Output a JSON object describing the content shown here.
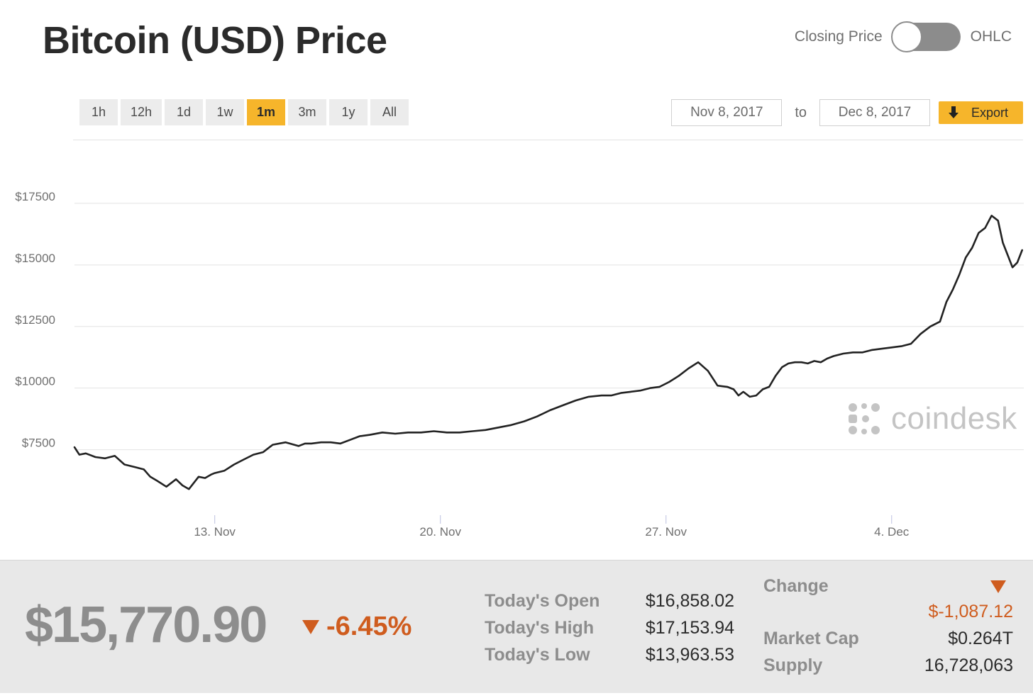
{
  "header": {
    "title": "Bitcoin (USD) Price",
    "toggle_left_label": "Closing Price",
    "toggle_right_label": "OHLC"
  },
  "range_buttons": [
    {
      "label": "1h",
      "active": false
    },
    {
      "label": "12h",
      "active": false
    },
    {
      "label": "1d",
      "active": false
    },
    {
      "label": "1w",
      "active": false
    },
    {
      "label": "1m",
      "active": true
    },
    {
      "label": "3m",
      "active": false
    },
    {
      "label": "1y",
      "active": false
    },
    {
      "label": "All",
      "active": false
    }
  ],
  "date_range": {
    "from": "Nov 8, 2017",
    "to_label": "to",
    "to": "Dec 8, 2017",
    "export_label": "Export"
  },
  "logo": {
    "text": "coindesk"
  },
  "colors": {
    "accent": "#f6b52b",
    "line": "#222222",
    "negative": "#cf5c1e",
    "grid": "#e3e3e3"
  },
  "chart_data": {
    "type": "line",
    "xlabel": "",
    "ylabel": "",
    "x_ticks": [
      {
        "label": "13. Nov",
        "x": 13
      },
      {
        "label": "20. Nov",
        "x": 20
      },
      {
        "label": "27. Nov",
        "x": 27
      },
      {
        "label": "4. Dec",
        "x": 34
      }
    ],
    "y_ticks": [
      {
        "label": "$7500",
        "value": 7500
      },
      {
        "label": "$10000",
        "value": 10000
      },
      {
        "label": "$12500",
        "value": 12500
      },
      {
        "label": "$15000",
        "value": 15000
      },
      {
        "label": "$17500",
        "value": 17500
      }
    ],
    "ylim": [
      4900,
      20000
    ],
    "xlim": [
      8.65,
      38.1
    ],
    "grid": true,
    "series": [
      {
        "x": [
          8.65,
          8.8,
          9.0,
          9.3,
          9.6,
          9.9,
          10.2,
          10.5,
          10.8,
          11.0,
          11.2,
          11.5,
          11.8,
          12.0,
          12.2,
          12.5,
          12.7,
          12.9,
          13.0,
          13.3,
          13.6,
          13.9,
          14.2,
          14.5,
          14.8,
          15.2,
          15.6,
          15.8,
          16.0,
          16.3,
          16.6,
          16.9,
          17.2,
          17.5,
          17.8,
          18.2,
          18.6,
          19.0,
          19.4,
          19.8,
          20.2,
          20.6,
          21.0,
          21.4,
          21.8,
          22.2,
          22.6,
          23.0,
          23.4,
          23.8,
          24.2,
          24.6,
          25.0,
          25.3,
          25.6,
          25.9,
          26.2,
          26.5,
          26.8,
          27.1,
          27.4,
          27.7,
          28.0,
          28.3,
          28.6,
          28.9,
          29.1,
          29.25,
          29.4,
          29.6,
          29.8,
          30.0,
          30.2,
          30.4,
          30.6,
          30.8,
          31.0,
          31.2,
          31.4,
          31.6,
          31.8,
          32.0,
          32.2,
          32.5,
          32.8,
          33.1,
          33.4,
          33.7,
          34.0,
          34.3,
          34.6,
          34.9,
          35.2,
          35.5,
          35.7,
          35.9,
          36.1,
          36.3,
          36.5,
          36.7,
          36.9,
          37.1,
          37.3,
          37.45,
          37.6,
          37.75,
          37.9,
          38.05
        ],
        "values": [
          7600,
          7300,
          7350,
          7200,
          7150,
          7250,
          6900,
          6800,
          6700,
          6400,
          6250,
          6000,
          6300,
          6050,
          5900,
          6400,
          6350,
          6500,
          6550,
          6650,
          6900,
          7100,
          7300,
          7400,
          7700,
          7800,
          7650,
          7750,
          7750,
          7800,
          7800,
          7750,
          7900,
          8050,
          8100,
          8200,
          8150,
          8200,
          8200,
          8250,
          8200,
          8200,
          8250,
          8300,
          8400,
          8500,
          8650,
          8850,
          9100,
          9300,
          9500,
          9650,
          9700,
          9700,
          9800,
          9850,
          9900,
          10000,
          10050,
          10250,
          10500,
          10800,
          11050,
          10700,
          10100,
          10050,
          9950,
          9700,
          9850,
          9650,
          9700,
          9950,
          10050,
          10500,
          10850,
          11000,
          11050,
          11050,
          11000,
          11100,
          11050,
          11200,
          11300,
          11400,
          11450,
          11450,
          11550,
          11600,
          11650,
          11700,
          11800,
          12200,
          12500,
          12700,
          13500,
          14000,
          14600,
          15300,
          15700,
          16300,
          16500,
          17000,
          16800,
          15900,
          15400,
          14900,
          15100,
          15600
        ]
      }
    ]
  },
  "stats": {
    "current_price": "$15,770.90",
    "pct_change": "-6.45%",
    "rows": [
      {
        "label": "Today's Open",
        "value": "$16,858.02"
      },
      {
        "label": "Today's High",
        "value": "$17,153.94"
      },
      {
        "label": "Today's Low",
        "value": "$13,963.53"
      }
    ],
    "change_label": "Change",
    "change_value": "$-1,087.12",
    "market_cap_label": "Market Cap",
    "market_cap_value": "$0.264T",
    "supply_label": "Supply",
    "supply_value": "16,728,063"
  }
}
